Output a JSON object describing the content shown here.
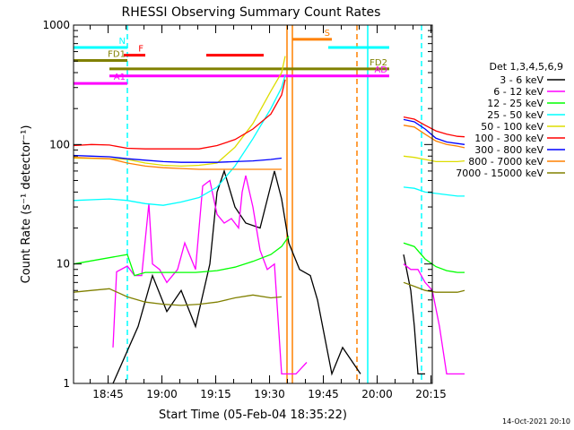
{
  "chart_data": {
    "type": "line",
    "title": "RHESSI Observing Summary Count Rates",
    "xlabel": "Start Time (05-Feb-04 18:35:22)",
    "ylabel": "Count Rate (s⁻¹ detector⁻¹)",
    "yscale": "log",
    "ylim": [
      1,
      1000
    ],
    "xlim_minutes_after_start": [
      0,
      100
    ],
    "x_ticks": [
      "18:45",
      "19:00",
      "19:15",
      "19:30",
      "19:45",
      "20:00",
      "20:15"
    ],
    "y_ticks": [
      "1",
      "10",
      "100",
      "1000"
    ],
    "timestamp": "14-Oct-2021 20:10",
    "legend_title": "Det 1,3,4,5,6,9",
    "legend_position": "right",
    "series": [
      {
        "name": "3 - 6 keV",
        "color": "#000000",
        "points": [
          [
            11,
            1
          ],
          [
            18,
            3
          ],
          [
            22,
            8
          ],
          [
            26,
            4
          ],
          [
            30,
            6
          ],
          [
            34,
            3
          ],
          [
            38,
            10
          ],
          [
            40,
            40
          ],
          [
            42,
            60
          ],
          [
            45,
            30
          ],
          [
            48,
            22
          ],
          [
            52,
            20
          ],
          [
            56,
            60
          ],
          [
            58,
            35
          ],
          [
            60,
            15
          ],
          [
            63,
            9
          ],
          [
            66,
            8
          ],
          [
            68,
            5
          ],
          [
            72,
            1.2
          ],
          [
            75,
            2
          ],
          [
            80,
            1.2
          ]
        ]
      },
      {
        "name": "6 - 12 keV",
        "color": "#ff00ff",
        "points": [
          [
            11,
            2
          ],
          [
            12,
            8.6
          ],
          [
            15,
            9.6
          ],
          [
            17,
            8
          ],
          [
            19,
            8
          ],
          [
            21,
            32
          ],
          [
            22,
            10
          ],
          [
            24,
            9
          ],
          [
            26,
            7
          ],
          [
            29,
            9
          ],
          [
            31,
            15
          ],
          [
            34,
            9
          ],
          [
            36,
            45
          ],
          [
            38,
            50
          ],
          [
            40,
            26
          ],
          [
            42,
            22
          ],
          [
            44,
            24
          ],
          [
            46,
            20
          ],
          [
            47,
            40
          ],
          [
            48,
            55
          ],
          [
            50,
            30
          ],
          [
            52,
            13
          ],
          [
            54,
            9
          ],
          [
            56,
            10
          ],
          [
            58,
            1.2
          ],
          [
            62,
            1.2
          ],
          [
            65,
            1.5
          ]
        ]
      },
      {
        "name": "12 - 25 keV",
        "color": "#00ff00",
        "points": [
          [
            0,
            10
          ],
          [
            15,
            12
          ],
          [
            17,
            8
          ],
          [
            20,
            8.5
          ],
          [
            26,
            8.5
          ],
          [
            30,
            8.5
          ],
          [
            34,
            8.5
          ],
          [
            40,
            8.8
          ],
          [
            45,
            9.4
          ],
          [
            50,
            10.5
          ],
          [
            55,
            12
          ],
          [
            58,
            14
          ],
          [
            60,
            17
          ]
        ]
      },
      {
        "name": "25 - 50 keV",
        "color": "#00ffff",
        "points": [
          [
            0,
            34
          ],
          [
            10,
            35
          ],
          [
            15,
            34
          ],
          [
            20,
            32
          ],
          [
            25,
            31
          ],
          [
            30,
            33
          ],
          [
            35,
            36
          ],
          [
            40,
            44
          ],
          [
            45,
            66
          ],
          [
            50,
            112
          ],
          [
            55,
            200
          ],
          [
            58,
            300
          ],
          [
            59,
            380
          ]
        ]
      },
      {
        "name": "50 - 100 keV",
        "color": "#dddd00",
        "points": [
          [
            0,
            77
          ],
          [
            10,
            76
          ],
          [
            15,
            75
          ],
          [
            20,
            70
          ],
          [
            25,
            67
          ],
          [
            30,
            66
          ],
          [
            35,
            67
          ],
          [
            40,
            70
          ],
          [
            45,
            95
          ],
          [
            50,
            150
          ],
          [
            55,
            280
          ],
          [
            58,
            400
          ],
          [
            59,
            550
          ]
        ]
      },
      {
        "name": "100 - 300 keV",
        "color": "#ff0000",
        "points": [
          [
            0,
            98
          ],
          [
            5,
            100
          ],
          [
            10,
            99
          ],
          [
            15,
            93
          ],
          [
            20,
            92
          ],
          [
            25,
            92
          ],
          [
            30,
            92
          ],
          [
            35,
            92
          ],
          [
            40,
            98
          ],
          [
            45,
            110
          ],
          [
            50,
            135
          ],
          [
            55,
            180
          ],
          [
            58,
            260
          ],
          [
            59,
            350
          ]
        ]
      },
      {
        "name": "300 - 800 keV",
        "color": "#0000ff",
        "points": [
          [
            0,
            81
          ],
          [
            5,
            80
          ],
          [
            10,
            79
          ],
          [
            15,
            76
          ],
          [
            20,
            74
          ],
          [
            25,
            72
          ],
          [
            30,
            71
          ],
          [
            35,
            71
          ],
          [
            40,
            71
          ],
          [
            45,
            72
          ],
          [
            50,
            73
          ],
          [
            55,
            75
          ],
          [
            58,
            77
          ]
        ]
      },
      {
        "name": "800 - 7000 keV",
        "color": "#ff8000",
        "points": [
          [
            0,
            78
          ],
          [
            5,
            77
          ],
          [
            10,
            76
          ],
          [
            15,
            70
          ],
          [
            20,
            66
          ],
          [
            25,
            64
          ],
          [
            30,
            63
          ],
          [
            35,
            62
          ],
          [
            40,
            62
          ],
          [
            45,
            62
          ],
          [
            50,
            62
          ],
          [
            55,
            62
          ],
          [
            58,
            62
          ]
        ]
      },
      {
        "name": "7000 - 15000 keV",
        "color": "#808000",
        "points": [
          [
            0,
            5.8
          ],
          [
            5,
            6
          ],
          [
            10,
            6.2
          ],
          [
            15,
            5.3
          ],
          [
            20,
            4.8
          ],
          [
            25,
            4.6
          ],
          [
            30,
            4.5
          ],
          [
            35,
            4.6
          ],
          [
            40,
            4.8
          ],
          [
            45,
            5.2
          ],
          [
            50,
            5.5
          ],
          [
            55,
            5.2
          ],
          [
            58,
            5.3
          ]
        ]
      }
    ],
    "series_after_gap": [
      {
        "color": "#000000",
        "points": [
          [
            92,
            12
          ],
          [
            94,
            6
          ],
          [
            95,
            3
          ],
          [
            96,
            1.2
          ],
          [
            98,
            1.2
          ]
        ]
      },
      {
        "color": "#ff00ff",
        "points": [
          [
            92,
            10
          ],
          [
            94,
            9
          ],
          [
            96,
            9
          ],
          [
            98,
            7
          ],
          [
            100,
            6
          ],
          [
            102,
            3
          ],
          [
            104,
            1.2
          ],
          [
            109,
            1.2
          ]
        ]
      },
      {
        "color": "#00ff00",
        "points": [
          [
            92,
            15
          ],
          [
            95,
            14
          ],
          [
            98,
            11
          ],
          [
            101,
            9.5
          ],
          [
            104,
            8.8
          ],
          [
            107,
            8.5
          ],
          [
            109,
            8.5
          ]
        ]
      },
      {
        "color": "#00ffff",
        "points": [
          [
            92,
            44
          ],
          [
            95,
            43
          ],
          [
            98,
            40
          ],
          [
            101,
            39
          ],
          [
            104,
            38
          ],
          [
            107,
            37
          ],
          [
            109,
            37
          ]
        ]
      },
      {
        "color": "#dddd00",
        "points": [
          [
            92,
            80
          ],
          [
            95,
            78
          ],
          [
            98,
            75
          ],
          [
            101,
            72
          ],
          [
            104,
            72
          ],
          [
            107,
            72
          ],
          [
            109,
            73
          ]
        ]
      },
      {
        "color": "#ff0000",
        "points": [
          [
            92,
            170
          ],
          [
            95,
            163
          ],
          [
            98,
            145
          ],
          [
            101,
            130
          ],
          [
            104,
            122
          ],
          [
            107,
            117
          ],
          [
            109,
            116
          ]
        ]
      },
      {
        "color": "#0000ff",
        "points": [
          [
            92,
            162
          ],
          [
            95,
            155
          ],
          [
            98,
            135
          ],
          [
            101,
            113
          ],
          [
            104,
            105
          ],
          [
            107,
            102
          ],
          [
            109,
            100
          ]
        ]
      },
      {
        "color": "#ff8000",
        "points": [
          [
            92,
            145
          ],
          [
            95,
            140
          ],
          [
            98,
            122
          ],
          [
            101,
            107
          ],
          [
            104,
            100
          ],
          [
            107,
            97
          ],
          [
            109,
            94
          ]
        ]
      },
      {
        "color": "#808000",
        "points": [
          [
            92,
            7
          ],
          [
            95,
            6.5
          ],
          [
            98,
            6
          ],
          [
            101,
            5.8
          ],
          [
            104,
            5.8
          ],
          [
            107,
            5.8
          ],
          [
            109,
            6
          ]
        ]
      }
    ],
    "annotations": [
      {
        "label": "N",
        "color": "#00ffff",
        "x_range": [
          0,
          15
        ],
        "y": 650
      },
      {
        "label": "",
        "color": "#00ffff",
        "x_range": [
          71,
          88
        ],
        "y": 650
      },
      {
        "label": "F",
        "color": "#ff0000",
        "x_range": [
          14,
          20
        ],
        "y": 560
      },
      {
        "label": "",
        "color": "#ff0000",
        "x_range": [
          37,
          53
        ],
        "y": 560
      },
      {
        "label": "FD1",
        "color": "#808000",
        "x_range": [
          0,
          15
        ],
        "y": 505
      },
      {
        "label": "FD2",
        "color": "#808000",
        "x_range": [
          10,
          88
        ],
        "y": 430
      },
      {
        "label": "AD",
        "color": "#ff00ff",
        "x_range": [
          10,
          88
        ],
        "y": 375
      },
      {
        "label": "A1",
        "color": "#ff00ff",
        "x_range": [
          0,
          15
        ],
        "y": 325
      },
      {
        "label": "S",
        "color": "#ff8000",
        "x_range": [
          61,
          72
        ],
        "y": 760
      }
    ],
    "vertical_markers": [
      {
        "x": 15,
        "color": "#00ffff",
        "style": "dashed"
      },
      {
        "x": 59.5,
        "color": "#ff8000",
        "style": "solid"
      },
      {
        "x": 61,
        "color": "#ff8000",
        "style": "solid"
      },
      {
        "x": 79,
        "color": "#ff8000",
        "style": "dashed"
      },
      {
        "x": 82,
        "color": "#00ffff",
        "style": "solid"
      },
      {
        "x": 97,
        "color": "#00ffff",
        "style": "dashed"
      }
    ]
  }
}
